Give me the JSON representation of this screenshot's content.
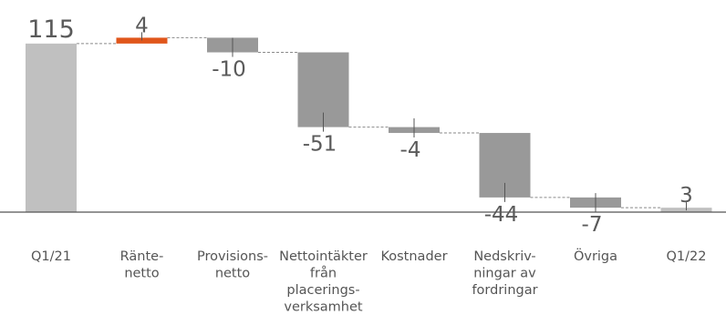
{
  "chart_data": {
    "type": "waterfall",
    "categories": [
      [
        "Q1/21"
      ],
      [
        "Ränte-",
        "netto"
      ],
      [
        "Provisions-",
        "netto"
      ],
      [
        "Nettointäkter",
        "från",
        "placerings-",
        "verksamhet"
      ],
      [
        "Kostnader"
      ],
      [
        "Nedskriv-",
        "ningar av",
        "fordringar"
      ],
      [
        "Övriga"
      ],
      [
        "Q1/22"
      ]
    ],
    "values": [
      115,
      4,
      -10,
      -51,
      -4,
      -44,
      -7,
      3
    ],
    "value_labels": [
      "115",
      "4",
      "-10",
      "-51",
      "-4",
      "-44",
      "-7",
      "3"
    ],
    "bar_kinds": [
      "total",
      "increase",
      "decrease",
      "decrease",
      "decrease",
      "decrease",
      "decrease",
      "total"
    ],
    "colors": {
      "total": "#c0c0c0",
      "increase": "#e0561b",
      "decrease": "#999999",
      "axis": "#555555",
      "connector": "#8a8a8a",
      "text": "#5a5a5a"
    },
    "ylim": [
      -3,
      125
    ],
    "grid": false
  }
}
